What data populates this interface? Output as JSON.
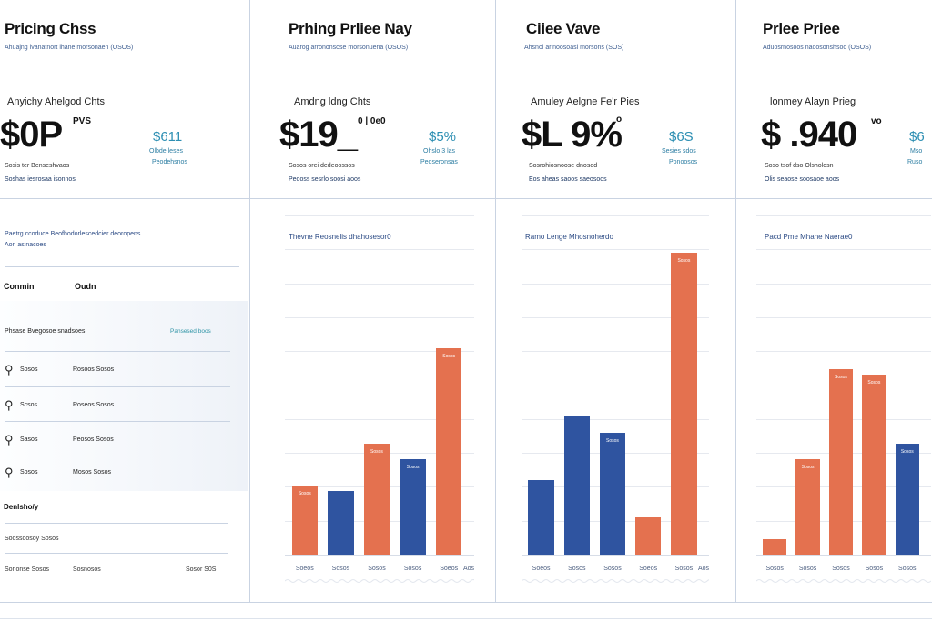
{
  "columns": [
    {
      "title": "Pricing Chss",
      "subtitle": "Ahuajng ivanatnort ihane morsonaen (OSOS)",
      "card_heading": "Anyichy Ahelgod Chts",
      "price": "$0P",
      "price_suffix": "PVS",
      "side_price": "$611",
      "side_lines": [
        "Olbde leses",
        "Peodehsnos"
      ],
      "meta_1": "Sosis ter Benseshvaos",
      "meta_2": "Soshas iesrosaa isonnos"
    },
    {
      "title": "Prhing Prliee Nay",
      "subtitle": "Auarog arrononsose morsonuena (OSOS)",
      "card_heading": "Amdng ldng Chts",
      "price": "$19_",
      "price_suffix": "0 | 0e0",
      "side_price": "$5%",
      "side_lines": [
        "Ohslo 3 las",
        "Peoseronsas"
      ],
      "meta_1": "Sosos orei dedeoossos",
      "meta_2": "Peooss sesrlo soosi aoos"
    },
    {
      "title": "Ciiee Vave",
      "subtitle": "Ahsnoi arinoosoasi morsons (SOS)",
      "card_heading": "Amuley Aelgne Fe'r Pies",
      "price": "$L 9%",
      "price_suffix": "o",
      "side_price": "$6S",
      "side_lines": [
        "Sesies sdos",
        "Ponoosos"
      ],
      "meta_1": "Sosrohiosnoose dnosod",
      "meta_2": "Eos aheas saoos saeosoos"
    },
    {
      "title": "Prlee Priee",
      "subtitle": "Aduosrnosoos naoosonshsoo (OSOS)",
      "card_heading": "lonmey Alayn Prieg",
      "price": "$ .940",
      "price_suffix": "vo",
      "side_price": "$6",
      "side_lines": [
        "Mso",
        "Ruso"
      ],
      "meta_1": "Soso tsof dso Olsholosn",
      "meta_2": "Olis seaose soosaoe aoos"
    }
  ],
  "left_panel": {
    "note_1": "Paetrg ccoduce Beofhodorlescedcier deoropens",
    "note_2": "Aon asinacoes",
    "table_headers": [
      "Conmin",
      "Oudn"
    ],
    "table_subheader_left": "Phsase Bvegosoe snadsoes",
    "table_subheader_right": "Pansesed boos",
    "rows": [
      {
        "icon": "person-icon",
        "glyph": "⚲",
        "name": "Sosos",
        "value": "Rosoos Sosos"
      },
      {
        "icon": "person-icon",
        "glyph": "⚲",
        "name": "Scsos",
        "value": "Roseos Sosos"
      },
      {
        "icon": "person-icon",
        "glyph": "⚲",
        "name": "Sasos",
        "value": "Peosos Sosos"
      },
      {
        "icon": "person-icon",
        "glyph": "⚲",
        "name": "Sosos",
        "value": "Mosos Sosos"
      }
    ],
    "footer_heading": "Denlsho/y",
    "footer_line": "Soossoosoy Sosos",
    "footer_bottom_left": "Sononse Sosos",
    "footer_bottom_mid": "Sosnosos",
    "footer_bottom_right": "Sosor S0S"
  },
  "colors": {
    "orange": "#e4714f",
    "blue": "#2f54a0",
    "divider": "#c9d3e2",
    "teal": "#2d8fb3"
  },
  "chart_data": [
    {
      "type": "bar",
      "title": "Thevne Reosnelis dhahosesor0",
      "categories": [
        "Soeos",
        "Sosos",
        "Sosos",
        "Sosos",
        "Soeos"
      ],
      "series": [
        {
          "values": [
            13,
            12,
            21,
            18,
            39
          ],
          "colors": [
            "orange",
            "blue",
            "orange",
            "blue",
            "orange"
          ],
          "labels": [
            "Sosos",
            "",
            "Sosos",
            "Sosos",
            "Sosos"
          ]
        }
      ],
      "extra_tick": "Aos",
      "ylim": [
        0,
        64
      ],
      "grid": true
    },
    {
      "type": "bar",
      "title": "Ramo Lenge Mhosnoherdo",
      "categories": [
        "Soeos",
        "Sosos",
        "Sosos",
        "Soeos",
        "Sosos"
      ],
      "series": [
        {
          "values": [
            14,
            26,
            23,
            7,
            57
          ],
          "colors": [
            "blue",
            "blue",
            "blue",
            "orange",
            "orange"
          ],
          "labels": [
            "",
            "",
            "Sosos",
            "",
            "Sosos"
          ]
        }
      ],
      "extra_tick": "Aos",
      "ylim": [
        0,
        64
      ],
      "grid": true
    },
    {
      "type": "bar",
      "title": "Pacd Pme Mhane Naerae0",
      "categories": [
        "Sosos",
        "Sosos",
        "Sosos",
        "Sosos",
        "Sosos"
      ],
      "series": [
        {
          "values": [
            3,
            18,
            35,
            34,
            21
          ],
          "colors": [
            "orange",
            "orange",
            "orange",
            "orange",
            "blue"
          ],
          "labels": [
            "",
            "Sosos",
            "Sosos",
            "Sosos",
            "Sosos"
          ]
        }
      ],
      "extra_tick": "",
      "ylim": [
        0,
        64
      ],
      "grid": true
    }
  ]
}
